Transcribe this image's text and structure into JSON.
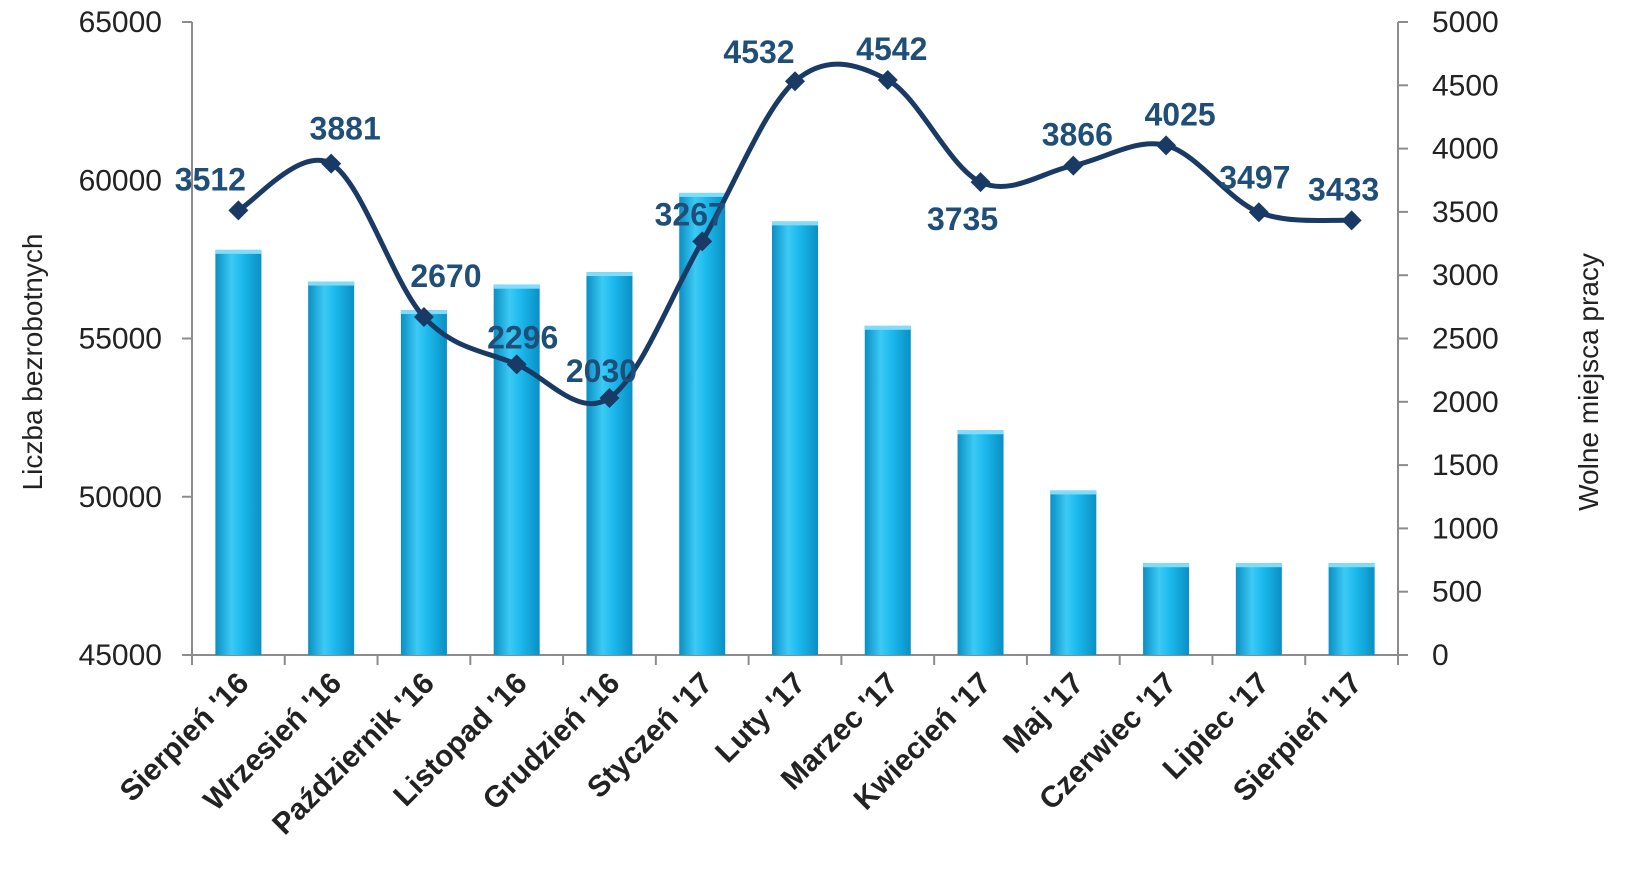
{
  "chart_data": {
    "type": "bar+line",
    "categories": [
      "Sierpień '16",
      "Wrzesień '16",
      "Październik '16",
      "Listopad '16",
      "Grudzień '16",
      "Styczeń '17",
      "Luty '17",
      "Marzec '17",
      "Kwiecień '17",
      "Maj '17",
      "Czerwiec '17",
      "Lipiec '17",
      "Sierpień '17"
    ],
    "series": [
      {
        "type": "bar",
        "axis": "left",
        "values": [
          57800,
          56800,
          55900,
          56700,
          57100,
          59600,
          58700,
          55400,
          52100,
          50200,
          47900,
          47900,
          47900
        ]
      },
      {
        "type": "line",
        "axis": "right",
        "values": [
          3512,
          3881,
          2670,
          2296,
          2030,
          3267,
          4532,
          4542,
          3735,
          3866,
          4025,
          3497,
          3433
        ],
        "data_labels": [
          "3512",
          "3881",
          "2670",
          "2296",
          "2030",
          "3267",
          "4532",
          "4542",
          "3735",
          "3866",
          "4025",
          "3497",
          "3433"
        ]
      }
    ],
    "ylabel_left": "Liczba bezrobotnych",
    "ylabel_right": "Wolne miejsca pracy",
    "ylim_left": [
      45000,
      65000
    ],
    "ylim_right": [
      0,
      5000
    ],
    "yticks_left": [
      "45000",
      "50000",
      "55000",
      "60000",
      "65000"
    ],
    "yticks_right": [
      "0",
      "500",
      "1000",
      "1500",
      "2000",
      "2500",
      "3000",
      "3500",
      "4000",
      "4500",
      "5000"
    ],
    "grid": false,
    "colors": {
      "bar": "#1ab8ec",
      "bar_light": "#7fdcfa",
      "bar_dark": "#0a8fc4",
      "line": "#1a3a66",
      "label": "#1f4e79"
    }
  }
}
